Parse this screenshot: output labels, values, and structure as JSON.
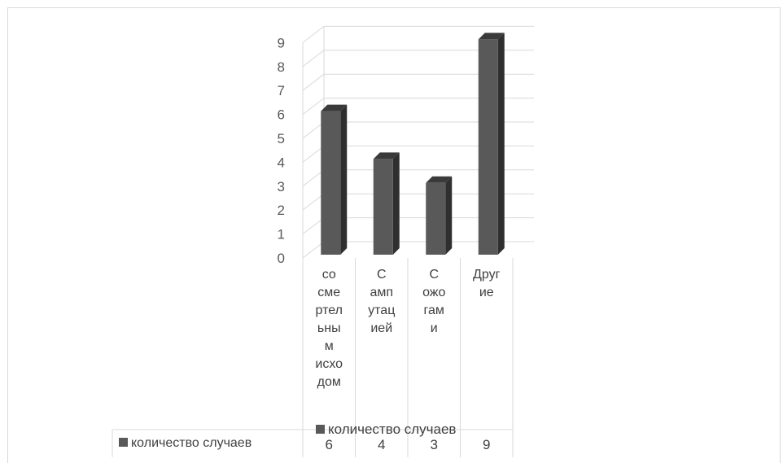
{
  "chart_data": {
    "type": "bar",
    "categories": [
      "со смертельным исходом",
      "С ампутацией",
      "С ожогами",
      "Другие"
    ],
    "category_lines": [
      [
        "со",
        "сме",
        "ртел",
        "ьны",
        "м",
        "исхо",
        "дом"
      ],
      [
        "С",
        "амп",
        "утац",
        "ией"
      ],
      [
        "С",
        "ожо",
        "гам",
        "и"
      ],
      [
        "Друг",
        "ие"
      ]
    ],
    "series": [
      {
        "name": "количество случаев",
        "values": [
          6,
          4,
          3,
          9
        ],
        "color": "#595959"
      }
    ],
    "ylim": [
      0,
      9
    ],
    "y_ticks": [
      "0",
      "1",
      "2",
      "3",
      "4",
      "5",
      "6",
      "7",
      "8",
      "9"
    ],
    "grid": true,
    "legend": "bottom",
    "style": "3d-column with data table"
  },
  "legend_label": "количество случаев",
  "table_row_label": "количество случаев",
  "table_values": [
    "6",
    "4",
    "3",
    "9"
  ]
}
